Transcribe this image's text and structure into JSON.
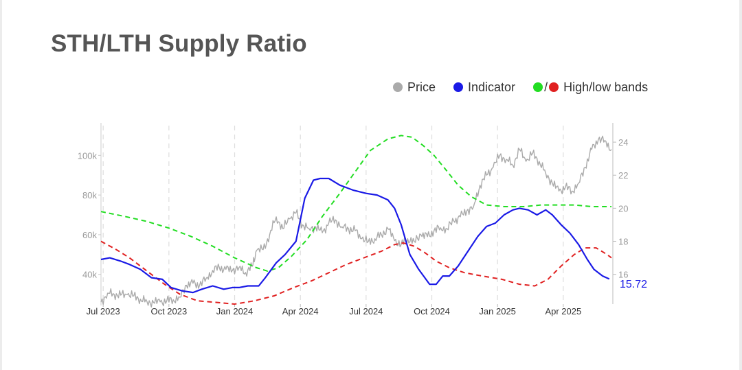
{
  "chart_data": {
    "type": "line",
    "title": "STH/LTH Supply Ratio",
    "legend": {
      "placement": "top-right",
      "entries": [
        {
          "label": "Price",
          "color": "#aaaaaa"
        },
        {
          "label": "Indicator",
          "color": "#1a1ae6"
        },
        {
          "label": "High/low bands",
          "colors": [
            "#22dd22",
            "#e02020"
          ]
        }
      ]
    },
    "x_ticks": [
      "Jul 2023",
      "Oct 2023",
      "Jan 2024",
      "Apr 2024",
      "Jul 2024",
      "Oct 2024",
      "Jan 2025",
      "Apr 2025"
    ],
    "x_tick_values": [
      0,
      3,
      6,
      9,
      12,
      15,
      18,
      21
    ],
    "x_range": [
      -0.1,
      23.2
    ],
    "y_left": {
      "ticks": [
        "40k",
        "60k",
        "80k",
        "100k"
      ],
      "tick_values": [
        40000,
        60000,
        80000,
        100000
      ],
      "range": [
        25000,
        115000
      ]
    },
    "y_right": {
      "ticks": [
        "16",
        "18",
        "20",
        "22",
        "24"
      ],
      "tick_values": [
        16,
        18,
        20,
        22,
        24
      ],
      "range": [
        14.2,
        25
      ]
    },
    "grid": {
      "vertical_dashed": true,
      "horizontal": false
    },
    "last_value_label": "15.72",
    "series": [
      {
        "name": "Price",
        "axis": "left",
        "color": "#aaaaaa",
        "style": "solid",
        "x": [
          -0.1,
          0.2,
          0.5,
          0.8,
          1.1,
          1.4,
          1.7,
          2.0,
          2.3,
          2.6,
          2.9,
          3.2,
          3.5,
          3.8,
          4.1,
          4.4,
          4.7,
          5.0,
          5.3,
          5.6,
          5.9,
          6.2,
          6.5,
          6.8,
          7.0,
          7.3,
          7.6,
          7.9,
          8.2,
          8.5,
          8.8,
          9.1,
          9.4,
          9.7,
          10.0,
          10.3,
          10.6,
          10.9,
          11.2,
          11.5,
          11.8,
          12.1,
          12.4,
          12.7,
          13.0,
          13.3,
          13.6,
          13.9,
          14.2,
          14.5,
          14.8,
          15.1,
          15.4,
          15.7,
          16.0,
          16.3,
          16.6,
          16.9,
          17.2,
          17.5,
          17.8,
          18.1,
          18.4,
          18.7,
          19.0,
          19.3,
          19.6,
          19.9,
          20.2,
          20.5,
          20.8,
          21.1,
          21.4,
          21.7,
          22.0,
          22.3,
          22.6,
          22.9,
          23.2
        ],
        "values": [
          26000,
          30500,
          30000,
          29500,
          29800,
          29200,
          27500,
          26200,
          25800,
          26100,
          26600,
          27200,
          28500,
          34500,
          35500,
          34500,
          38000,
          42000,
          43500,
          42500,
          42000,
          43500,
          41000,
          44000,
          52000,
          52500,
          60000,
          69000,
          63000,
          68000,
          71000,
          65000,
          63000,
          64000,
          61000,
          66000,
          67500,
          64000,
          63000,
          62000,
          58000,
          56500,
          58000,
          60000,
          63000,
          57000,
          55000,
          58000,
          56500,
          60000,
          59000,
          62000,
          63500,
          63000,
          67000,
          69000,
          72000,
          74000,
          85000,
          90000,
          94000,
          100000,
          98000,
          95000,
          103000,
          97000,
          101000,
          97000,
          91000,
          86000,
          82000,
          84000,
          82000,
          86000,
          94000,
          103000,
          108000,
          107500,
          103000
        ]
      },
      {
        "name": "Indicator",
        "axis": "right",
        "color": "#1a1ae6",
        "style": "solid",
        "x": [
          -0.1,
          0.3,
          0.8,
          1.2,
          1.7,
          2.2,
          2.7,
          3.1,
          3.6,
          4.1,
          4.5,
          5.0,
          5.5,
          5.9,
          6.2,
          6.6,
          7.1,
          7.4,
          7.9,
          8.3,
          8.8,
          9.2,
          9.6,
          9.9,
          10.3,
          10.8,
          11.4,
          12.0,
          12.5,
          13.0,
          13.3,
          13.6,
          14.0,
          14.4,
          14.9,
          15.2,
          15.5,
          15.8,
          16.2,
          16.7,
          17.1,
          17.5,
          17.9,
          18.3,
          18.7,
          19.0,
          19.4,
          19.8,
          20.2,
          20.5,
          20.9,
          21.3,
          21.7,
          22.1,
          22.4,
          22.8,
          23.1
        ],
        "values": [
          16.9,
          17.0,
          16.8,
          16.6,
          16.3,
          15.8,
          15.7,
          15.2,
          15.0,
          14.9,
          15.1,
          15.3,
          15.1,
          15.2,
          15.2,
          15.3,
          15.3,
          15.8,
          16.7,
          17.2,
          18.0,
          20.6,
          21.7,
          21.8,
          21.8,
          21.4,
          21.1,
          20.9,
          20.8,
          20.5,
          20.0,
          19.0,
          17.2,
          16.3,
          15.4,
          15.4,
          15.9,
          15.9,
          16.5,
          17.5,
          18.3,
          18.9,
          19.1,
          19.6,
          19.9,
          20.0,
          19.9,
          19.6,
          19.9,
          19.6,
          19.0,
          18.5,
          17.8,
          16.9,
          16.3,
          15.9,
          15.72
        ]
      },
      {
        "name": "High band",
        "axis": "right",
        "color": "#22dd22",
        "style": "dashed",
        "x": [
          -0.1,
          1.0,
          2.0,
          3.0,
          4.0,
          5.0,
          6.0,
          7.0,
          7.5,
          8.0,
          8.6,
          9.3,
          10.0,
          10.8,
          11.5,
          12.2,
          13.0,
          13.6,
          14.1,
          14.6,
          15.1,
          15.6,
          16.2,
          16.8,
          17.5,
          18.3,
          19.2,
          20.0,
          20.7,
          21.5,
          22.3,
          23.2
        ],
        "values": [
          19.8,
          19.5,
          19.2,
          18.8,
          18.3,
          17.7,
          17.0,
          16.4,
          16.2,
          16.4,
          17.1,
          18.1,
          19.5,
          20.9,
          22.2,
          23.5,
          24.2,
          24.4,
          24.3,
          23.8,
          23.2,
          22.4,
          21.4,
          20.7,
          20.2,
          20.1,
          20.1,
          20.2,
          20.2,
          20.2,
          20.1,
          20.1
        ],
        "color_secondary": "#22dd22"
      },
      {
        "name": "Low band",
        "axis": "right",
        "color": "#e02020",
        "style": "dashed",
        "x": [
          -0.1,
          0.6,
          1.2,
          2.0,
          2.8,
          3.5,
          4.3,
          5.2,
          6.0,
          6.9,
          7.8,
          8.7,
          9.5,
          10.3,
          11.1,
          11.9,
          12.7,
          13.3,
          13.7,
          14.2,
          14.7,
          15.2,
          15.8,
          16.5,
          17.3,
          18.2,
          19.0,
          19.7,
          20.3,
          20.9,
          21.5,
          22.0,
          22.5,
          23.0,
          23.2
        ],
        "values": [
          18.0,
          17.5,
          17.0,
          16.2,
          15.4,
          14.8,
          14.4,
          14.3,
          14.2,
          14.4,
          14.7,
          15.2,
          15.6,
          16.1,
          16.6,
          17.0,
          17.4,
          17.8,
          17.9,
          17.7,
          17.3,
          16.8,
          16.4,
          16.1,
          15.9,
          15.7,
          15.4,
          15.3,
          15.7,
          16.5,
          17.2,
          17.6,
          17.6,
          17.2,
          17.0
        ]
      }
    ]
  }
}
